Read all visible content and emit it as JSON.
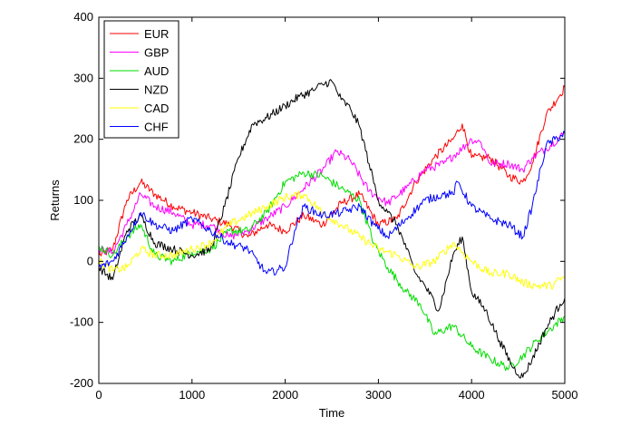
{
  "chart_data": {
    "type": "line",
    "title": "",
    "xlabel": "Time",
    "ylabel": "Returns",
    "xlim": [
      0,
      5000
    ],
    "ylim": [
      -200,
      400
    ],
    "xticks": [
      0,
      1000,
      2000,
      3000,
      4000,
      5000
    ],
    "yticks": [
      -200,
      -100,
      0,
      100,
      200,
      300,
      400
    ],
    "xtick_labels": [
      "0",
      "1000",
      "2000",
      "3000",
      "4000",
      "5000"
    ],
    "ytick_labels": [
      "-200",
      "-100",
      "0",
      "100",
      "200",
      "300",
      "400"
    ],
    "grid": false,
    "legend_position": "top-left",
    "series": [
      {
        "name": "EUR",
        "color": "#ff0000",
        "points": [
          [
            0,
            10
          ],
          [
            150,
            20
          ],
          [
            300,
            100
          ],
          [
            450,
            130
          ],
          [
            600,
            110
          ],
          [
            800,
            90
          ],
          [
            1000,
            80
          ],
          [
            1200,
            70
          ],
          [
            1400,
            60
          ],
          [
            1600,
            40
          ],
          [
            1800,
            60
          ],
          [
            2000,
            50
          ],
          [
            2200,
            75
          ],
          [
            2400,
            60
          ],
          [
            2600,
            95
          ],
          [
            2800,
            110
          ],
          [
            3000,
            60
          ],
          [
            3200,
            70
          ],
          [
            3400,
            130
          ],
          [
            3600,
            170
          ],
          [
            3800,
            200
          ],
          [
            3900,
            225
          ],
          [
            4000,
            170
          ],
          [
            4200,
            170
          ],
          [
            4400,
            140
          ],
          [
            4550,
            130
          ],
          [
            4650,
            160
          ],
          [
            4800,
            240
          ],
          [
            5000,
            285
          ]
        ]
      },
      {
        "name": "GBP",
        "color": "#ff00ff",
        "points": [
          [
            0,
            20
          ],
          [
            150,
            15
          ],
          [
            300,
            60
          ],
          [
            450,
            110
          ],
          [
            600,
            90
          ],
          [
            800,
            80
          ],
          [
            1000,
            60
          ],
          [
            1200,
            60
          ],
          [
            1400,
            40
          ],
          [
            1600,
            50
          ],
          [
            1800,
            70
          ],
          [
            2000,
            90
          ],
          [
            2200,
            120
          ],
          [
            2400,
            150
          ],
          [
            2550,
            180
          ],
          [
            2700,
            165
          ],
          [
            2900,
            115
          ],
          [
            3100,
            95
          ],
          [
            3300,
            120
          ],
          [
            3500,
            150
          ],
          [
            3700,
            160
          ],
          [
            3900,
            185
          ],
          [
            4000,
            200
          ],
          [
            4100,
            195
          ],
          [
            4200,
            160
          ],
          [
            4400,
            160
          ],
          [
            4550,
            150
          ],
          [
            4650,
            170
          ],
          [
            4800,
            185
          ],
          [
            5000,
            210
          ]
        ]
      },
      {
        "name": "AUD",
        "color": "#00dd00",
        "points": [
          [
            0,
            25
          ],
          [
            150,
            10
          ],
          [
            300,
            40
          ],
          [
            450,
            60
          ],
          [
            600,
            10
          ],
          [
            800,
            0
          ],
          [
            1000,
            15
          ],
          [
            1200,
            20
          ],
          [
            1400,
            50
          ],
          [
            1600,
            50
          ],
          [
            1800,
            80
          ],
          [
            2000,
            130
          ],
          [
            2200,
            145
          ],
          [
            2400,
            140
          ],
          [
            2600,
            120
          ],
          [
            2800,
            100
          ],
          [
            2950,
            30
          ],
          [
            3100,
            -10
          ],
          [
            3300,
            -50
          ],
          [
            3450,
            -70
          ],
          [
            3600,
            -120
          ],
          [
            3800,
            -105
          ],
          [
            4000,
            -140
          ],
          [
            4200,
            -160
          ],
          [
            4400,
            -175
          ],
          [
            4550,
            -155
          ],
          [
            4700,
            -130
          ],
          [
            4850,
            -110
          ],
          [
            5000,
            -90
          ]
        ]
      },
      {
        "name": "NZD",
        "color": "#000000",
        "points": [
          [
            0,
            -10
          ],
          [
            150,
            -30
          ],
          [
            300,
            50
          ],
          [
            450,
            75
          ],
          [
            600,
            30
          ],
          [
            800,
            20
          ],
          [
            1000,
            10
          ],
          [
            1200,
            20
          ],
          [
            1350,
            90
          ],
          [
            1500,
            170
          ],
          [
            1650,
            225
          ],
          [
            1800,
            235
          ],
          [
            2000,
            255
          ],
          [
            2150,
            270
          ],
          [
            2300,
            280
          ],
          [
            2400,
            290
          ],
          [
            2500,
            295
          ],
          [
            2600,
            265
          ],
          [
            2700,
            250
          ],
          [
            2800,
            220
          ],
          [
            2900,
            160
          ],
          [
            3000,
            100
          ],
          [
            3100,
            80
          ],
          [
            3200,
            60
          ],
          [
            3300,
            20
          ],
          [
            3400,
            -20
          ],
          [
            3500,
            -40
          ],
          [
            3650,
            -80
          ],
          [
            3800,
            10
          ],
          [
            3900,
            40
          ],
          [
            4000,
            -50
          ],
          [
            4150,
            -80
          ],
          [
            4300,
            -130
          ],
          [
            4450,
            -175
          ],
          [
            4550,
            -190
          ],
          [
            4650,
            -160
          ],
          [
            4800,
            -110
          ],
          [
            4950,
            -70
          ],
          [
            5000,
            -60
          ]
        ]
      },
      {
        "name": "CAD",
        "color": "#ffff00",
        "points": [
          [
            0,
            0
          ],
          [
            150,
            -15
          ],
          [
            300,
            -10
          ],
          [
            450,
            20
          ],
          [
            600,
            10
          ],
          [
            800,
            10
          ],
          [
            1000,
            20
          ],
          [
            1200,
            30
          ],
          [
            1400,
            60
          ],
          [
            1600,
            75
          ],
          [
            1800,
            90
          ],
          [
            2000,
            105
          ],
          [
            2200,
            110
          ],
          [
            2400,
            80
          ],
          [
            2600,
            60
          ],
          [
            2800,
            40
          ],
          [
            3000,
            20
          ],
          [
            3200,
            10
          ],
          [
            3400,
            -10
          ],
          [
            3600,
            0
          ],
          [
            3800,
            30
          ],
          [
            3900,
            15
          ],
          [
            4000,
            0
          ],
          [
            4200,
            -20
          ],
          [
            4400,
            -20
          ],
          [
            4550,
            -35
          ],
          [
            4700,
            -40
          ],
          [
            4850,
            -40
          ],
          [
            5000,
            -25
          ]
        ]
      },
      {
        "name": "CHF",
        "color": "#0000ff",
        "points": [
          [
            0,
            -10
          ],
          [
            150,
            0
          ],
          [
            300,
            40
          ],
          [
            450,
            80
          ],
          [
            600,
            60
          ],
          [
            800,
            50
          ],
          [
            1000,
            70
          ],
          [
            1200,
            50
          ],
          [
            1400,
            30
          ],
          [
            1600,
            20
          ],
          [
            1800,
            -20
          ],
          [
            2000,
            -10
          ],
          [
            2100,
            50
          ],
          [
            2200,
            90
          ],
          [
            2400,
            75
          ],
          [
            2600,
            80
          ],
          [
            2800,
            90
          ],
          [
            2950,
            60
          ],
          [
            3100,
            40
          ],
          [
            3300,
            70
          ],
          [
            3500,
            100
          ],
          [
            3700,
            110
          ],
          [
            3800,
            110
          ],
          [
            3850,
            130
          ],
          [
            4000,
            90
          ],
          [
            4200,
            70
          ],
          [
            4400,
            60
          ],
          [
            4550,
            40
          ],
          [
            4650,
            90
          ],
          [
            4800,
            190
          ],
          [
            5000,
            210
          ]
        ]
      }
    ]
  }
}
